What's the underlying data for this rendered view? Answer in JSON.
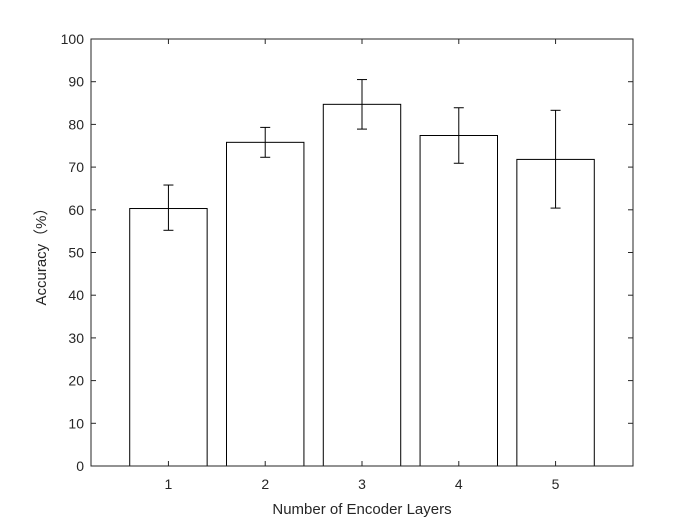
{
  "chart_data": {
    "type": "bar",
    "title": "",
    "xlabel": "Number of Encoder Layers",
    "ylabel": "Accuracy（%）",
    "categories": [
      "1",
      "2",
      "3",
      "4",
      "5"
    ],
    "x": [
      1,
      2,
      3,
      4,
      5
    ],
    "values": [
      60.3,
      75.8,
      84.7,
      77.4,
      71.8
    ],
    "error_low": [
      55.2,
      72.3,
      78.9,
      70.9,
      60.4
    ],
    "error_high": [
      65.8,
      79.3,
      90.5,
      83.9,
      83.3
    ],
    "xlim": [
      0.2,
      5.8
    ],
    "ylim": [
      0,
      100
    ],
    "yticks": [
      0,
      10,
      20,
      30,
      40,
      50,
      60,
      70,
      80,
      90,
      100
    ],
    "grid": false,
    "legend": "none",
    "colors": {
      "bar_fill": "#ffffff",
      "bar_edge": "#000000",
      "axis": "#262626"
    }
  }
}
